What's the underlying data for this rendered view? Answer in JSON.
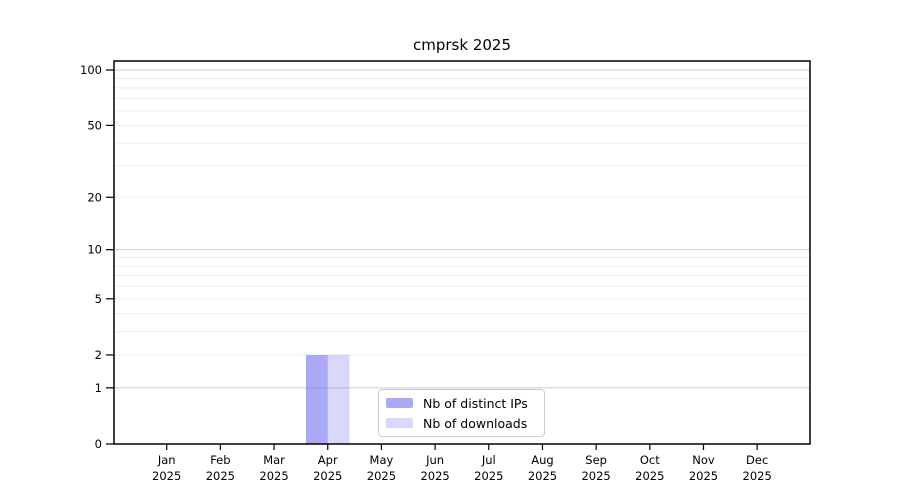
{
  "chart_data": {
    "type": "bar",
    "title": "cmprsk 2025",
    "x": {
      "categories": [
        "Jan",
        "Feb",
        "Mar",
        "Apr",
        "May",
        "Jun",
        "Jul",
        "Aug",
        "Sep",
        "Oct",
        "Nov",
        "Dec"
      ],
      "year": "2025"
    },
    "y": {
      "scale": "log1p",
      "lim": [
        0,
        114
      ],
      "labeled_ticks": [
        0,
        1,
        2,
        5,
        10,
        20,
        50,
        100
      ],
      "major_gridlines": [
        1,
        10,
        100
      ],
      "minor_gridlines": [
        2,
        3,
        4,
        5,
        6,
        7,
        8,
        9,
        20,
        30,
        40,
        50,
        60,
        70,
        80,
        90
      ],
      "grid_on": true
    },
    "series": [
      {
        "key": "distinct-ips",
        "name": "Nb of distinct IPs",
        "base_color": "#7070f0",
        "opacity": 0.6,
        "values": [
          0,
          0,
          0,
          2,
          0,
          0,
          0,
          0,
          0,
          0,
          0,
          0
        ]
      },
      {
        "key": "downloads",
        "name": "Nb of downloads",
        "base_color": "#7070f0",
        "opacity": 0.27,
        "values": [
          0,
          0,
          0,
          2,
          0,
          0,
          0,
          0,
          0,
          0,
          0,
          0
        ]
      }
    ],
    "legend": {
      "position": "bottom-center",
      "border_color": "#cccccc",
      "background": "#ffffff"
    },
    "colors": {
      "axis": "#000000",
      "text": "#000000",
      "grid_major": "#cbcbcb",
      "grid_minor": "#ededed",
      "background": "#ffffff"
    }
  }
}
